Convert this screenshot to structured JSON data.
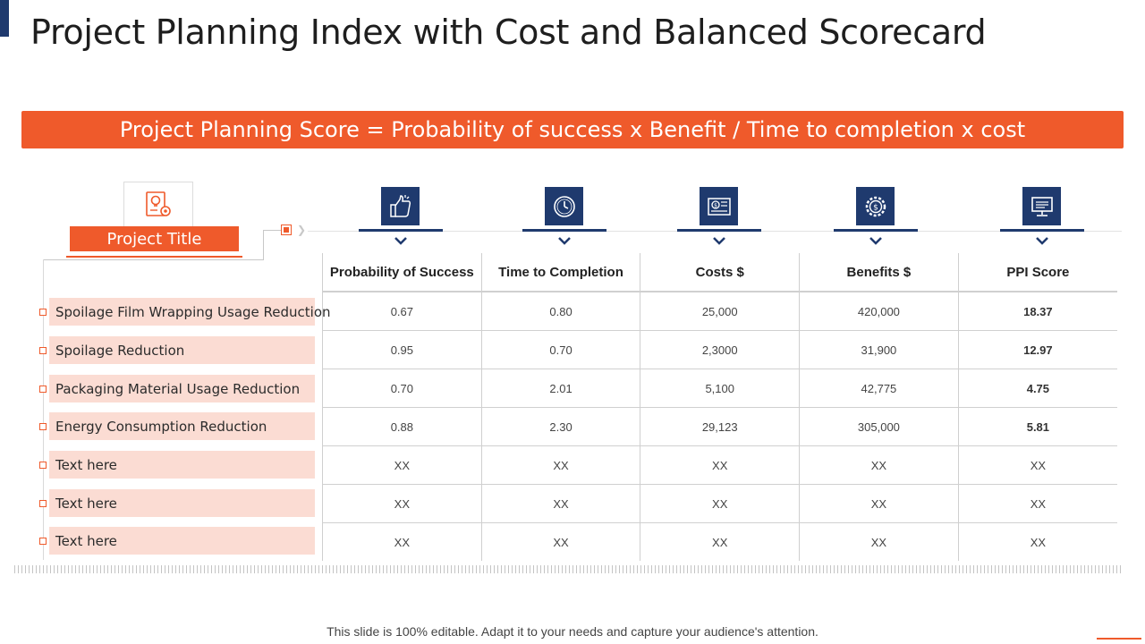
{
  "title": "Project Planning Index with Cost and Balanced Scorecard",
  "formula": "Project Planning Score = Probability of success x Benefit / Time to completion x cost",
  "project_badge": {
    "label": "Project Title",
    "icon": "idea-gear-document-icon"
  },
  "columns": [
    {
      "label": "Probability of Success",
      "icon": "thumbs-up-icon"
    },
    {
      "label": "Time to Completion",
      "icon": "clock-icon"
    },
    {
      "label": "Costs $",
      "icon": "money-document-icon"
    },
    {
      "label": "Benefits $",
      "icon": "gear-coin-icon"
    },
    {
      "label": "PPI Score",
      "icon": "monitor-icon"
    }
  ],
  "rows": [
    {
      "label": "Spoilage Film Wrapping Usage Reduction",
      "values": [
        "0.67",
        "0.80",
        "25,000",
        "420,000",
        "18.37"
      ]
    },
    {
      "label": "Spoilage Reduction",
      "values": [
        "0.95",
        "0.70",
        "2,3000",
        "31,900",
        "12.97"
      ]
    },
    {
      "label": "Packaging Material Usage Reduction",
      "values": [
        "0.70",
        "2.01",
        "5,100",
        "42,775",
        "4.75"
      ]
    },
    {
      "label": "Energy Consumption Reduction",
      "values": [
        "0.88",
        "2.30",
        "29,123",
        "305,000",
        "5.81"
      ]
    },
    {
      "label": "Text here",
      "values": [
        "XX",
        "XX",
        "XX",
        "XX",
        "XX"
      ]
    },
    {
      "label": "Text here",
      "values": [
        "XX",
        "XX",
        "XX",
        "XX",
        "XX"
      ]
    },
    {
      "label": "Text here",
      "values": [
        "XX",
        "XX",
        "XX",
        "XX",
        "XX"
      ]
    }
  ],
  "footer": "This slide is 100% editable. Adapt it to your needs and capture your audience's attention.",
  "colors": {
    "accent": "#ef5a2b",
    "navy": "#1f3a6e",
    "row_fill": "#fbdcd3"
  }
}
